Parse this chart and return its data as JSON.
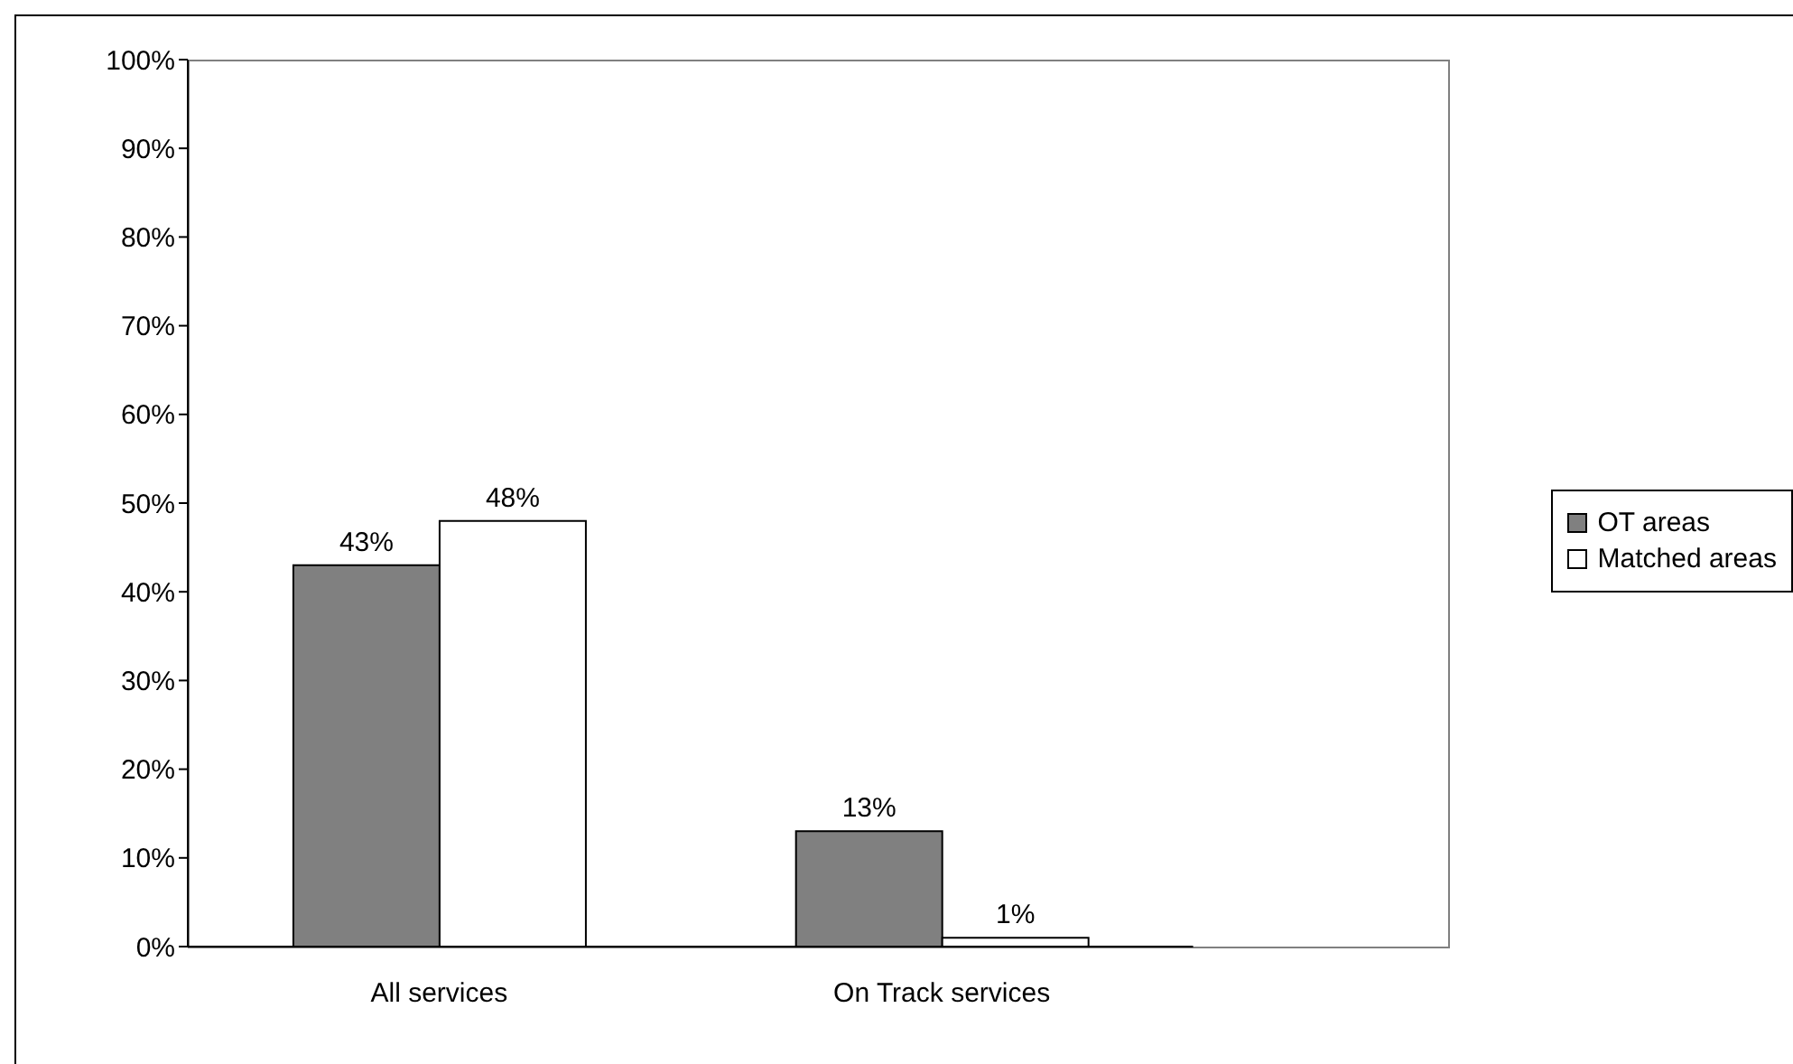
{
  "chart_data": {
    "type": "bar",
    "categories": [
      "All services",
      "On Track services"
    ],
    "series": [
      {
        "name": "OT areas",
        "color": "#808080",
        "values": [
          43,
          13
        ],
        "value_labels": [
          "43%",
          "13%"
        ]
      },
      {
        "name": "Matched areas",
        "color": "#ffffff",
        "values": [
          48,
          1
        ],
        "value_labels": [
          "48%",
          "1%"
        ]
      }
    ],
    "ylim": [
      0,
      100
    ],
    "yticks": [
      {
        "value": 0,
        "label": "0%"
      },
      {
        "value": 10,
        "label": "10%"
      },
      {
        "value": 20,
        "label": "20%"
      },
      {
        "value": 30,
        "label": "30%"
      },
      {
        "value": 40,
        "label": "40%"
      },
      {
        "value": 50,
        "label": "50%"
      },
      {
        "value": 60,
        "label": "60%"
      },
      {
        "value": 70,
        "label": "70%"
      },
      {
        "value": 80,
        "label": "80%"
      },
      {
        "value": 90,
        "label": "90%"
      },
      {
        "value": 100,
        "label": "100%"
      }
    ],
    "grid": false,
    "legend": "right"
  }
}
